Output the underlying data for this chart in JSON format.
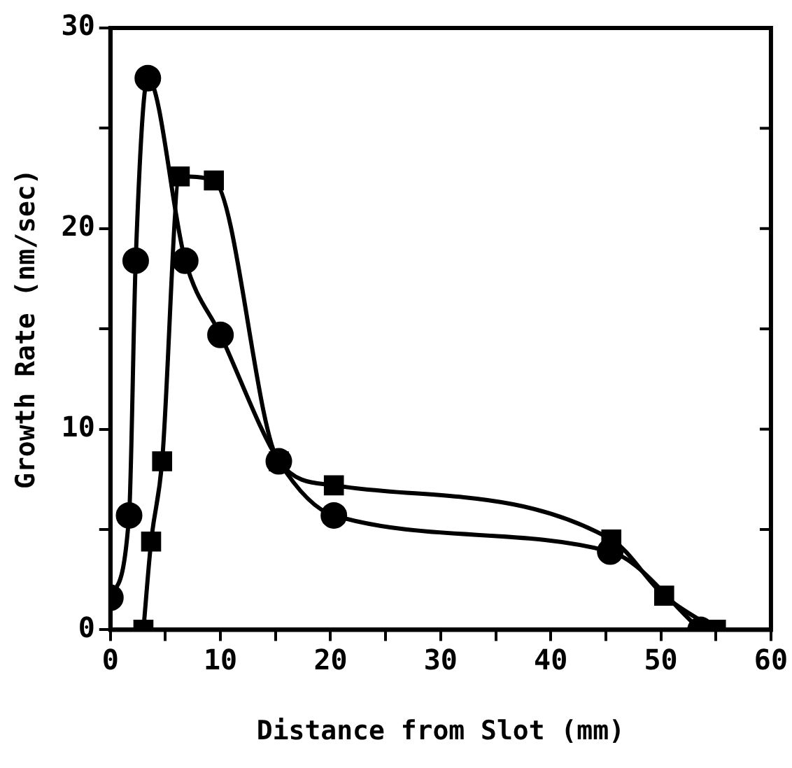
{
  "chart_data": {
    "type": "line",
    "xlabel": "Distance from Slot (mm)",
    "ylabel": "Growth Rate (nm/sec)",
    "xlim": [
      0,
      60
    ],
    "xticks": [
      0,
      {
        "value": 5,
        "label": null
      },
      10,
      {
        "value": 15,
        "label": null
      },
      20,
      {
        "value": 25,
        "label": null
      },
      30,
      {
        "value": 35,
        "label": null
      },
      40,
      {
        "value": 45,
        "label": null
      },
      50,
      {
        "value": 55,
        "label": null
      },
      60
    ],
    "ylim": [
      0,
      30
    ],
    "yticks": [
      0,
      {
        "value": 5,
        "label": null
      },
      10,
      {
        "value": 15,
        "label": null
      },
      20,
      {
        "value": 25,
        "label": null
      },
      30
    ],
    "grid": false,
    "legend": false,
    "line_style": "solid",
    "series": [
      {
        "color": "#000000",
        "marker": "circle",
        "x": [
          0,
          1.7,
          2.3,
          3.4,
          6.8,
          10,
          15.3,
          20.3,
          45.4,
          53.6
        ],
        "values": [
          1.6,
          5.7,
          18.4,
          27.5,
          18.4,
          14.7,
          8.4,
          5.7,
          3.9,
          0
        ]
      },
      {
        "color": "#000000",
        "marker": "square",
        "x": [
          3,
          3.7,
          4.7,
          6.3,
          9.4,
          15.3,
          20.3,
          45.5,
          50.3,
          55
        ],
        "values": [
          0,
          4.4,
          8.4,
          22.6,
          22.4,
          8.4,
          7.2,
          4.5,
          1.7,
          0
        ]
      }
    ]
  }
}
